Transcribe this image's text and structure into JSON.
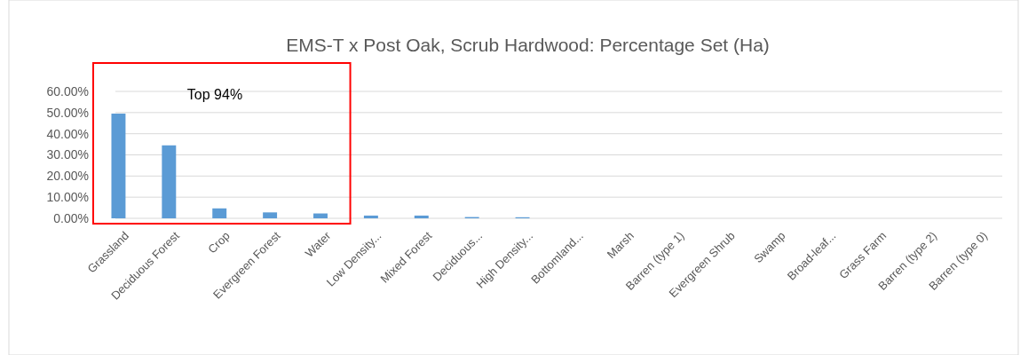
{
  "chart_data": {
    "type": "bar",
    "title": "EMS-T x Post Oak, Scrub Hardwood: Percentage Set (Ha)",
    "categories": [
      "Grassland",
      "Deciduous Forest",
      "Crop",
      "Evergreen Forest",
      "Water",
      "Low Density...",
      "Mixed Forest",
      "Deciduous...",
      "High Density...",
      "Bottomland...",
      "Marsh",
      "Barren (type 1)",
      "Evergreen Shrub",
      "Swamp",
      "Broad-leaf...",
      "Grass Farm",
      "Barren (type 2)",
      "Barren (type 0)"
    ],
    "values": [
      49.5,
      34.5,
      4.7,
      2.8,
      2.3,
      1.3,
      1.3,
      0.6,
      0.5,
      0,
      0,
      0,
      0,
      0,
      0,
      0,
      0,
      0
    ],
    "color": "#5b9bd5",
    "ylim": [
      0,
      60
    ],
    "yticks": [
      {
        "value": 0,
        "label": "0.00%"
      },
      {
        "value": 10,
        "label": "10.00%"
      },
      {
        "value": 20,
        "label": "20.00%"
      },
      {
        "value": 30,
        "label": "30.00%"
      },
      {
        "value": 40,
        "label": "40.00%"
      },
      {
        "value": 50,
        "label": "50.00%"
      },
      {
        "value": 60,
        "label": "60.00%"
      }
    ],
    "grid": "y",
    "annotations": [
      "Top 94%"
    ]
  }
}
